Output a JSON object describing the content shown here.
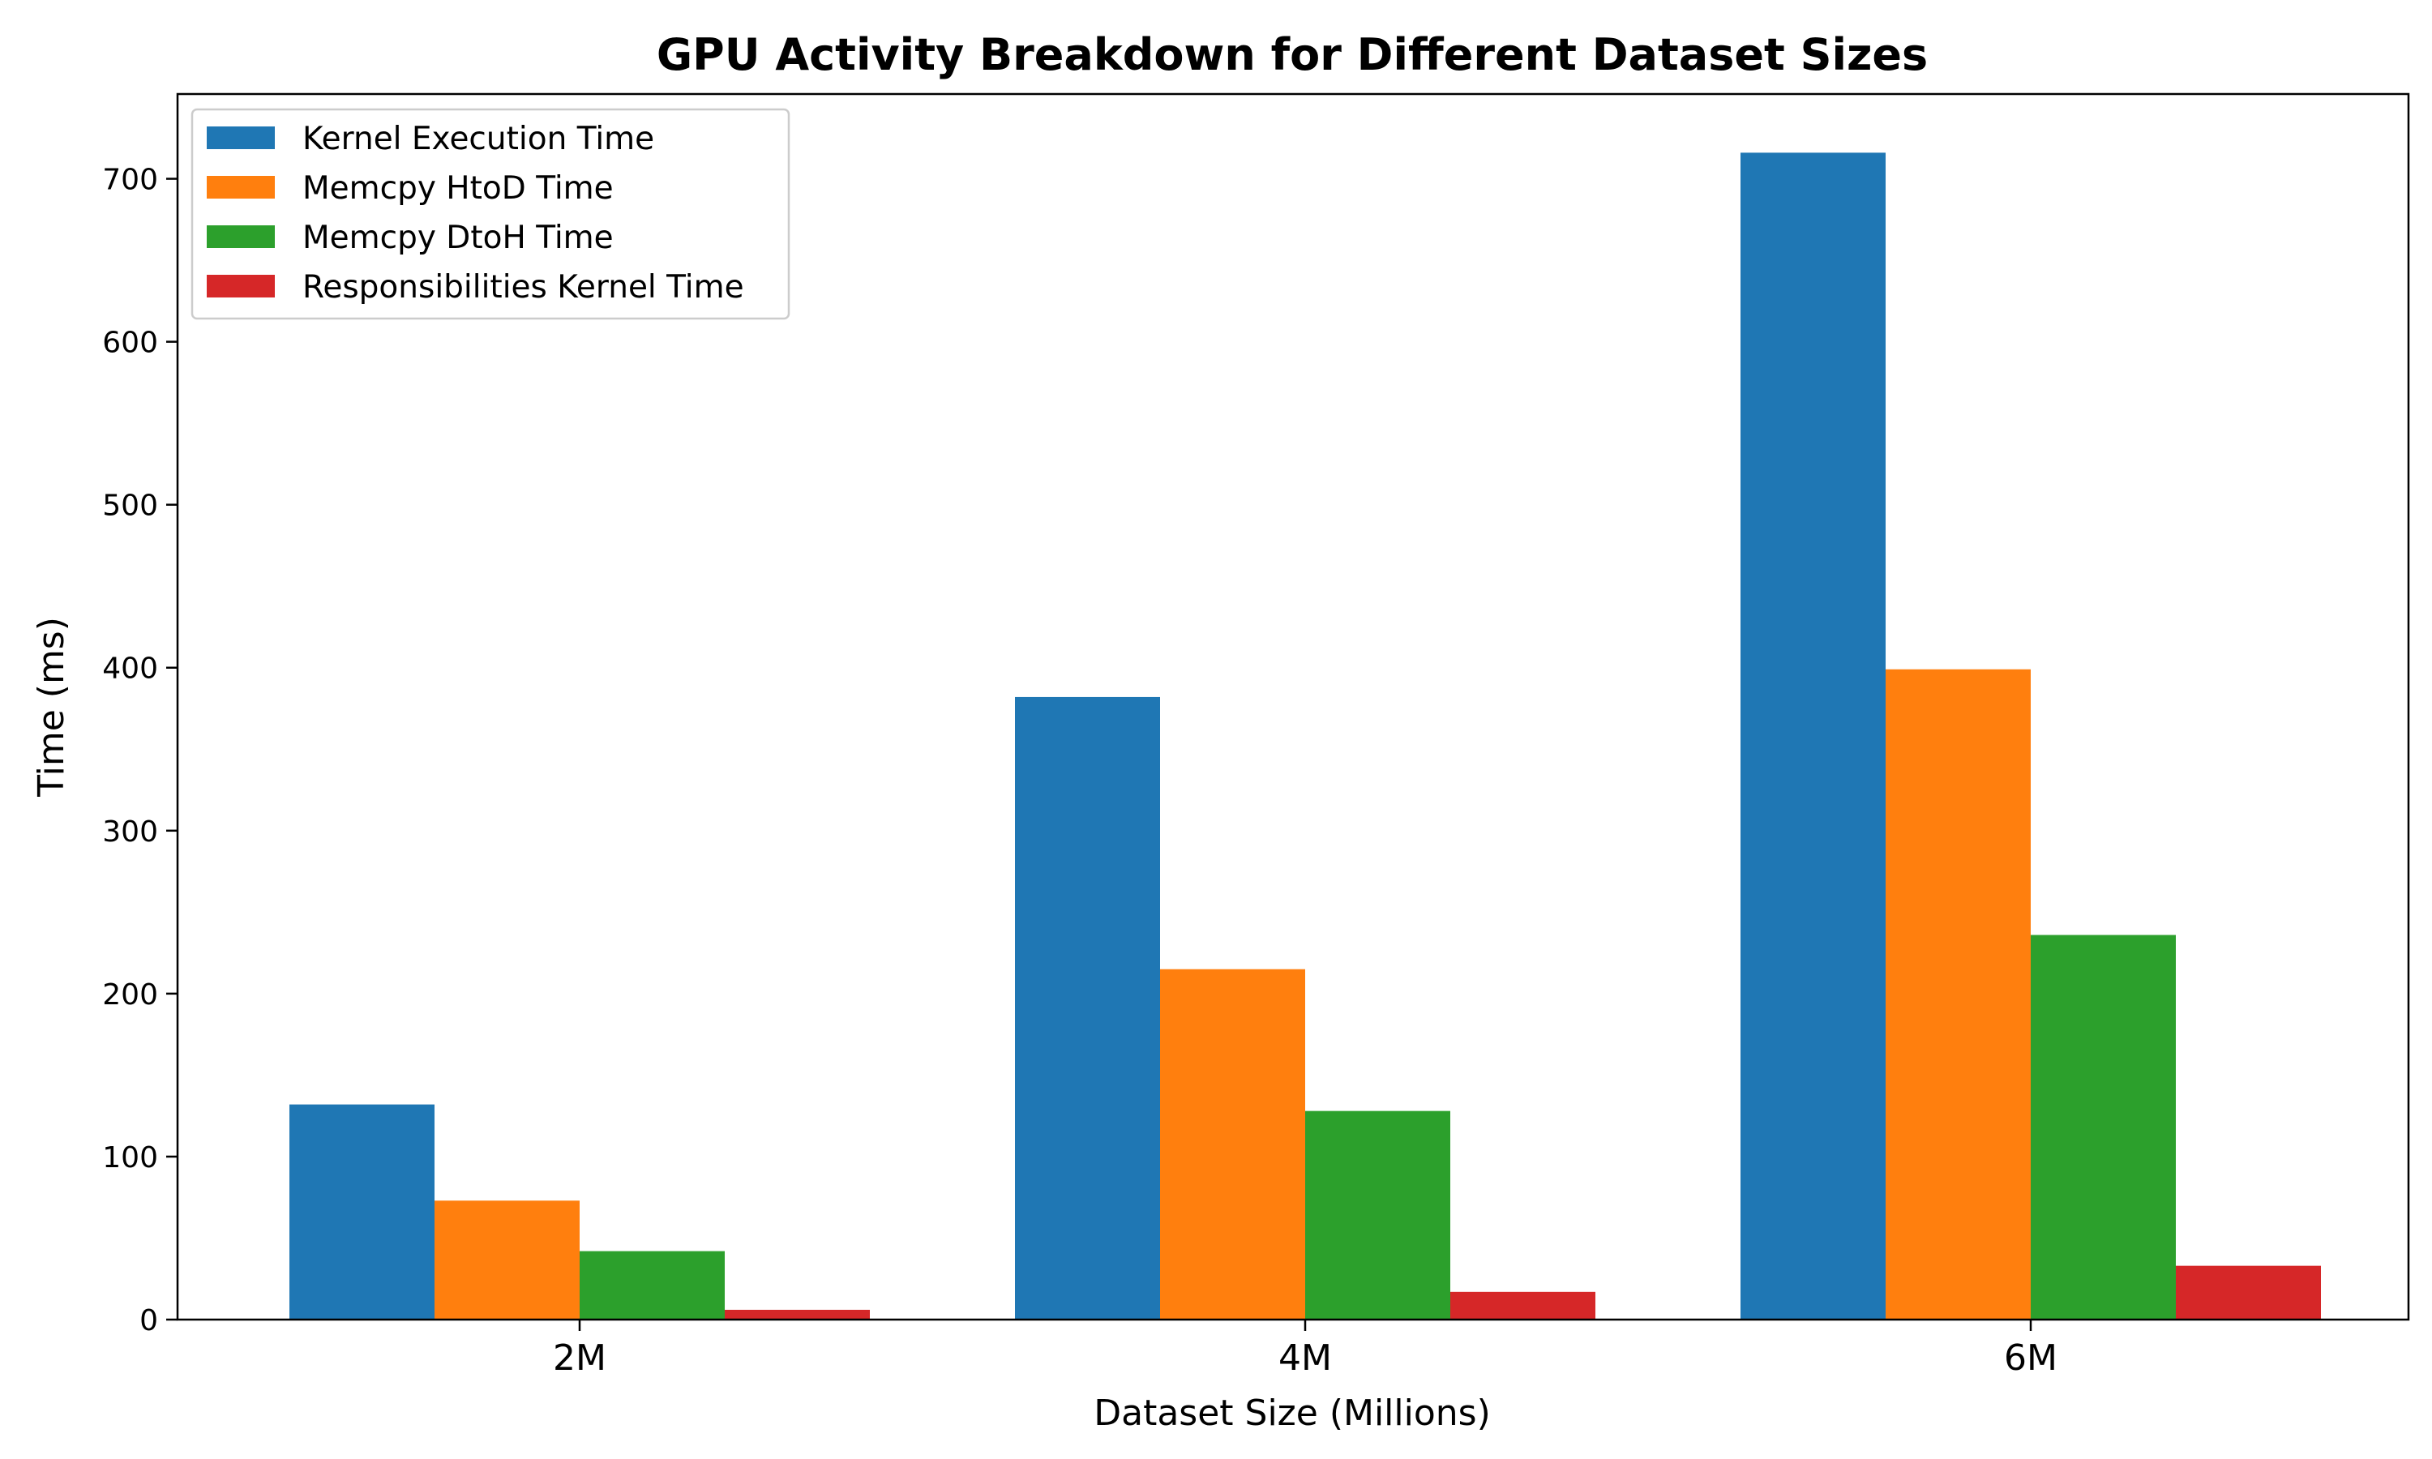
{
  "colors": {
    "kernel": "#1f77b4",
    "htod": "#ff7f0e",
    "dtoh": "#2ca02c",
    "responsibilities": "#d62728"
  },
  "chart_data": {
    "type": "bar",
    "title": "GPU Activity Breakdown for Different Dataset Sizes",
    "xlabel": "Dataset Size (Millions)",
    "ylabel": "Time (ms)",
    "categories": [
      "2M",
      "4M",
      "6M"
    ],
    "ylim": [
      0,
      752
    ],
    "yticks": [
      0,
      100,
      200,
      300,
      400,
      500,
      600,
      700
    ],
    "grid": false,
    "legend_position": "top-left",
    "series": [
      {
        "name": "Kernel Execution Time",
        "color_key": "kernel",
        "values": [
          132,
          382,
          716
        ]
      },
      {
        "name": "Memcpy HtoD Time",
        "color_key": "htod",
        "values": [
          73,
          215,
          399
        ]
      },
      {
        "name": "Memcpy DtoH Time",
        "color_key": "dtoh",
        "values": [
          42,
          128,
          236
        ]
      },
      {
        "name": "Responsibilities Kernel Time",
        "color_key": "responsibilities",
        "values": [
          6,
          17,
          33
        ]
      }
    ]
  }
}
